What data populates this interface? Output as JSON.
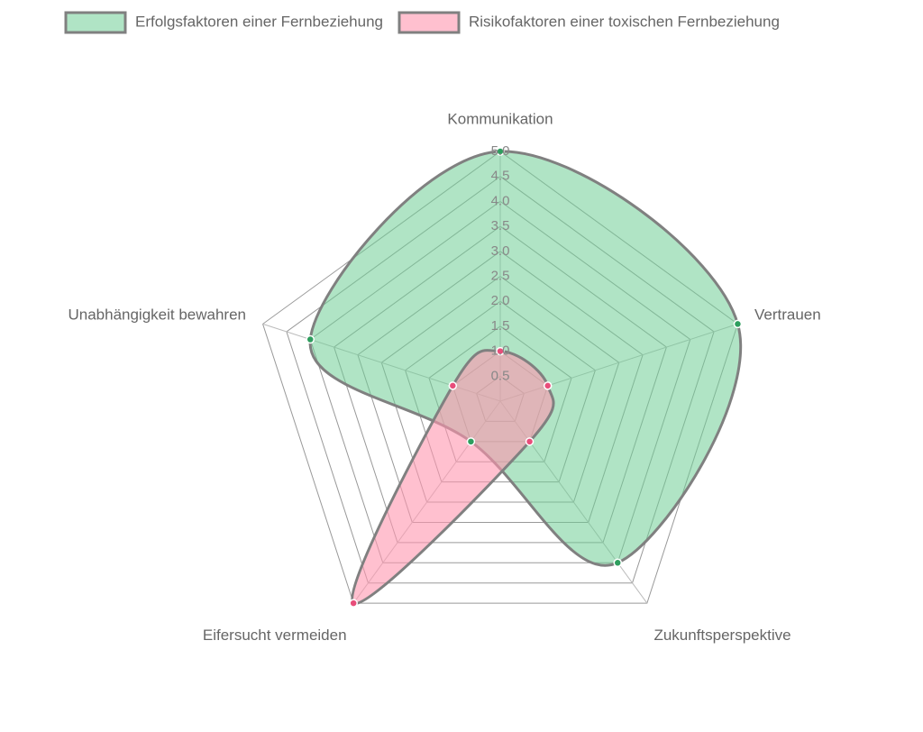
{
  "chart_data": {
    "type": "radar",
    "categories": [
      "Kommunikation",
      "Vertrauen",
      "Zukunftsperspektive",
      "Eifersucht vermeiden",
      "Unabhängigkeit bewahren"
    ],
    "series": [
      {
        "name": "Erfolgsfaktoren einer Fernbeziehung",
        "color": "#2e9e5e",
        "fill": "rgba(112,205,150,0.55)",
        "values": [
          5,
          5,
          4,
          1,
          4
        ]
      },
      {
        "name": "Risikofaktoren einer toxischen Fernbeziehung",
        "color": "#e84d7a",
        "fill": "rgba(255,150,175,0.6)",
        "values": [
          1,
          1,
          1,
          5,
          1
        ]
      }
    ],
    "ylim": [
      0,
      5
    ],
    "yticks": [
      0.5,
      {
        "value": 1,
        "label": "1.0"
      },
      1.5,
      {
        "value": 2,
        "label": "2.0"
      },
      2.5,
      {
        "value": 3,
        "label": "3.0"
      },
      3.5,
      {
        "value": 4,
        "label": "4.0"
      },
      4.5,
      {
        "value": 5,
        "label": "5.0"
      }
    ],
    "grid": true
  }
}
